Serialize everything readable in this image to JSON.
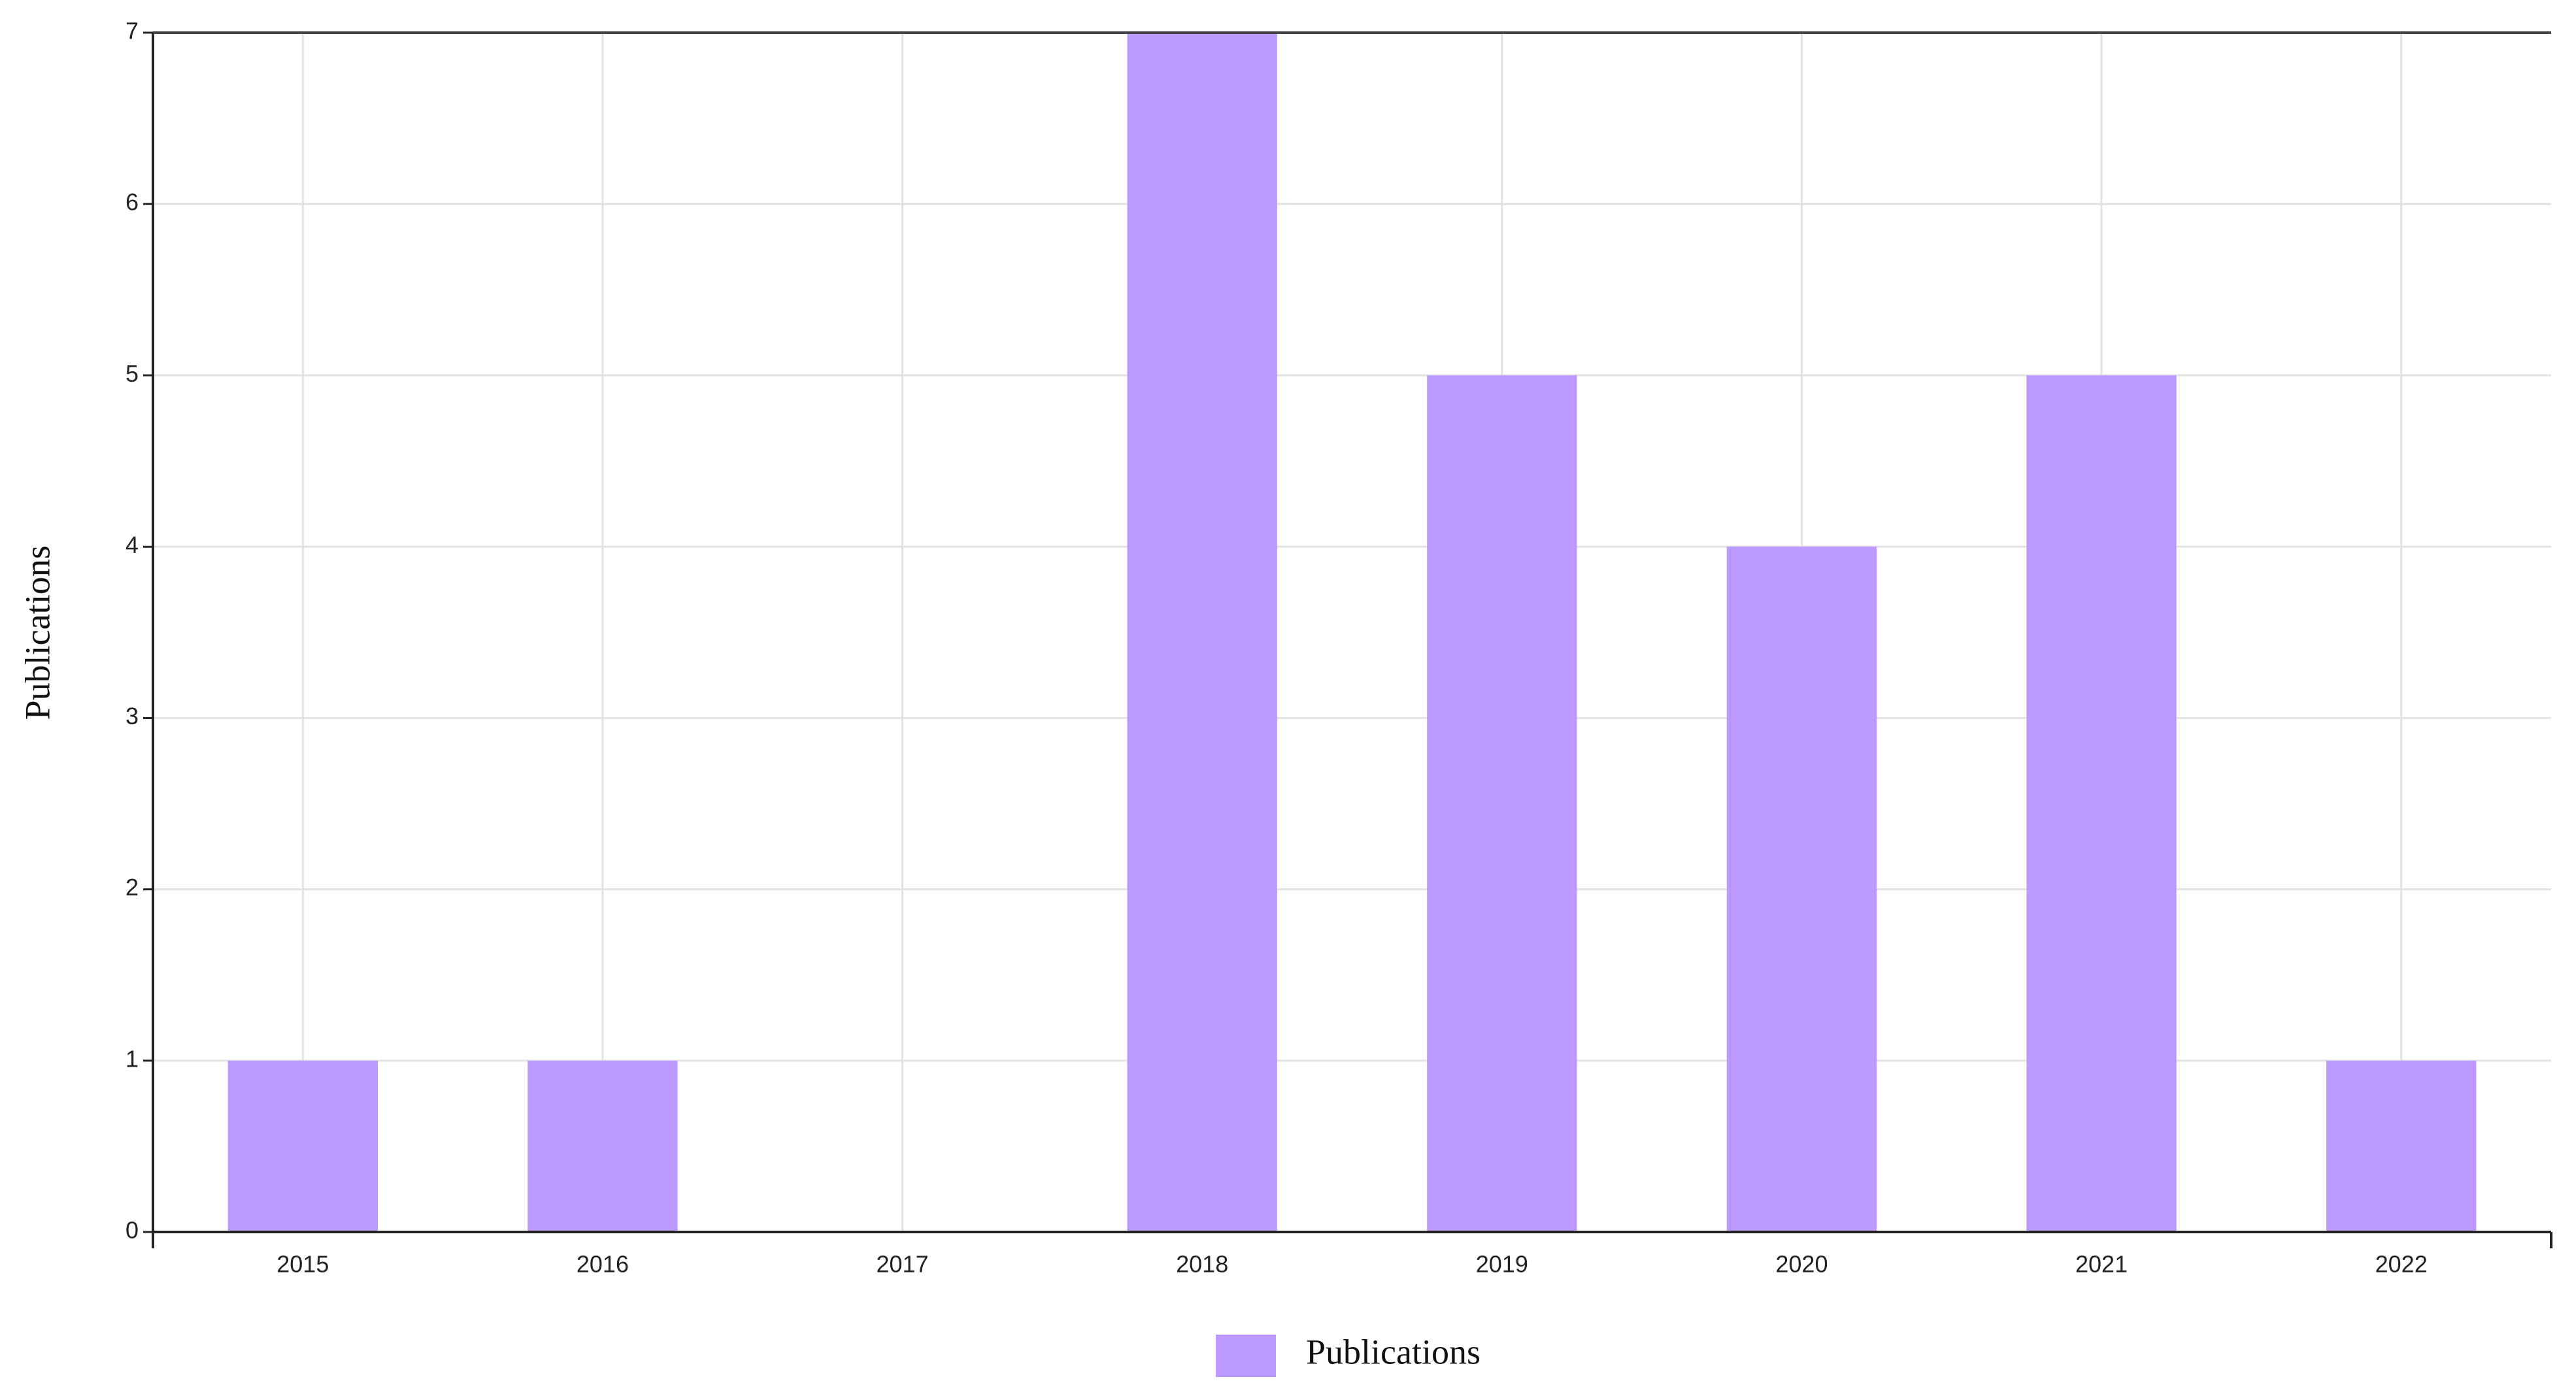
{
  "chart_data": {
    "type": "bar",
    "y_label": "Publications",
    "categories": [
      "2015",
      "2016",
      "2017",
      "2018",
      "2019",
      "2020",
      "2021",
      "2022"
    ],
    "series": [
      {
        "name": "Publications",
        "color": "#bb99ff",
        "values": [
          1,
          1,
          0,
          7,
          5,
          4,
          5,
          1
        ]
      }
    ],
    "ylim": [
      0,
      7
    ],
    "yticks": [
      0,
      1,
      2,
      3,
      4,
      5,
      6,
      7
    ],
    "grid": true,
    "legend": "bottom"
  }
}
